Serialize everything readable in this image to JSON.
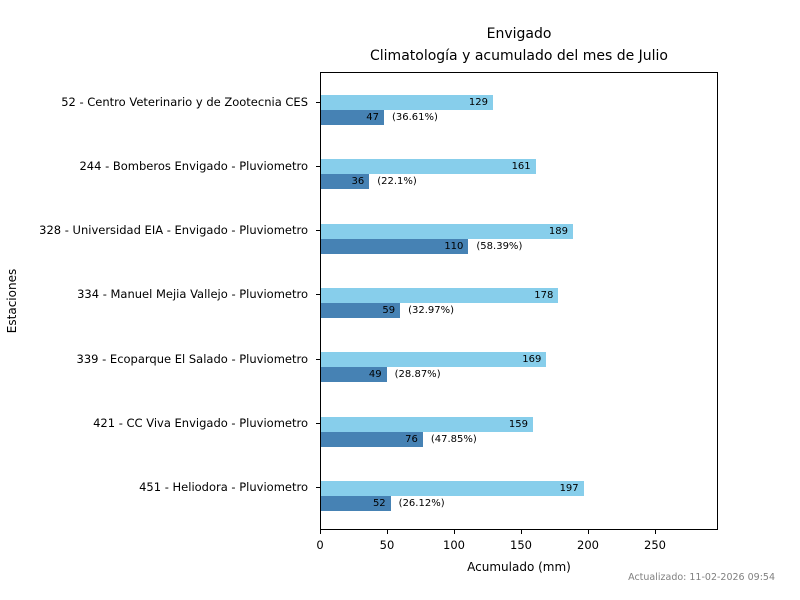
{
  "title": {
    "line1": "Envigado",
    "line2": "Climatología y acumulado del mes de Julio"
  },
  "axes": {
    "xlabel": "Acumulado (mm)",
    "ylabel": "Estaciones"
  },
  "footer": {
    "updated": "Actualizado: 11-02-2026 09:54"
  },
  "colors": {
    "climatology_bar": "#87CEEB",
    "accumulated_bar": "#4682B4",
    "axis": "#000000",
    "footer_text": "#808080"
  },
  "chart_data": {
    "type": "bar",
    "orientation": "horizontal",
    "title": "Envigado — Climatología y acumulado del mes de Julio",
    "xlabel": "Acumulado (mm)",
    "ylabel": "Estaciones",
    "xlim": [
      0,
      297
    ],
    "xticks": [
      0,
      50,
      100,
      150,
      200,
      250
    ],
    "grid": false,
    "legend": "none",
    "categories": [
      "52 - Centro Veterinario y de Zootecnia CES",
      "244 - Bomberos Envigado - Pluviometro",
      "328 - Universidad EIA - Envigado - Pluviometro",
      "334 - Manuel Mejia Vallejo - Pluviometro",
      "339 - Ecoparque El Salado - Pluviometro",
      "421 - CC Viva Envigado - Pluviometro",
      "451 - Heliodora - Pluviometro"
    ],
    "series": [
      {
        "name": "Climatología",
        "color": "#87CEEB",
        "values": [
          129,
          161,
          189,
          178,
          169,
          159,
          197
        ]
      },
      {
        "name": "Acumulado",
        "color": "#4682B4",
        "values": [
          47,
          36,
          110,
          59,
          49,
          76,
          52
        ]
      }
    ],
    "percent_labels": [
      "(36.61%)",
      "(22.1%)",
      "(58.39%)",
      "(32.97%)",
      "(28.87%)",
      "(47.85%)",
      "(26.12%)"
    ]
  }
}
